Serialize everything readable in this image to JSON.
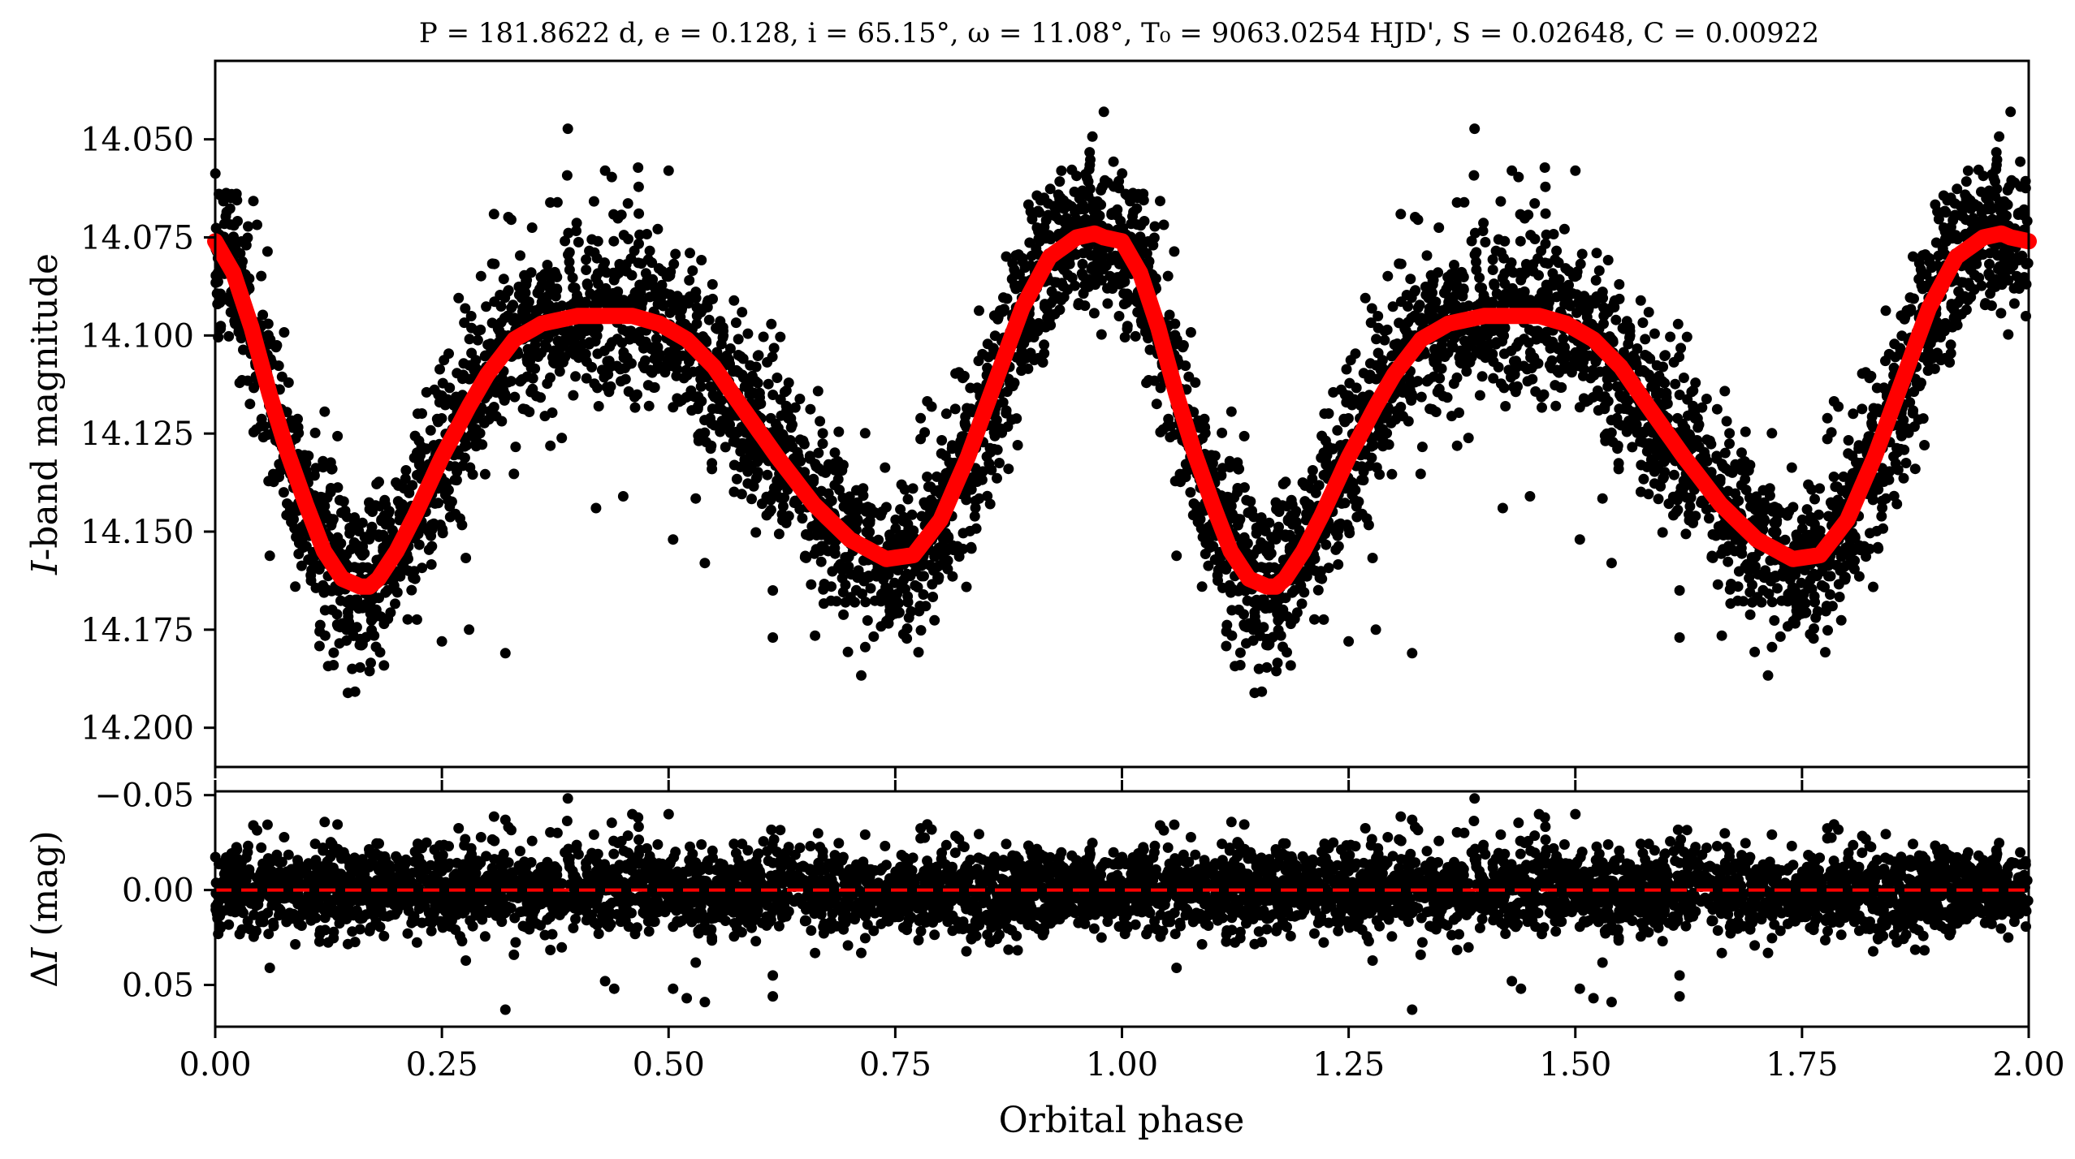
{
  "figure": {
    "title": "P = 181.8622 d, e = 0.128, i = 65.15°, ω = 11.08°, T₀ = 9063.0254 HJD', S = 0.02648, C = 0.00922"
  },
  "colors": {
    "data_points": "#000000",
    "model_curve": "#ff0000",
    "zero_line": "#ff0000",
    "axes": "#000000",
    "background": "#ffffff"
  },
  "chart_data": [
    {
      "type": "scatter",
      "panel": "light-curve",
      "xlabel": "",
      "ylabel_italic": "I",
      "ylabel_rest": "-band magnitude",
      "xlim": [
        0.0,
        2.0
      ],
      "ylim": [
        14.21,
        14.03
      ],
      "y_inverted": true,
      "y_ticks": [
        "14.050",
        "14.075",
        "14.100",
        "14.125",
        "14.150",
        "14.175",
        "14.200"
      ],
      "x_ticks": [
        0.0,
        0.25,
        0.5,
        0.75,
        1.0,
        1.25,
        1.5,
        1.75,
        2.0
      ],
      "grid": false,
      "series": [
        {
          "kind": "points",
          "note_phase_fold": "same data repeated for phase + 1",
          "x": [
            0.0,
            0.02,
            0.04,
            0.06,
            0.08,
            0.1,
            0.12,
            0.14,
            0.16,
            0.17,
            0.18,
            0.2,
            0.22,
            0.25,
            0.28,
            0.3,
            0.33,
            0.36,
            0.4,
            0.43,
            0.46,
            0.49,
            0.52,
            0.55,
            0.58,
            0.62,
            0.66,
            0.7,
            0.74,
            0.77,
            0.8,
            0.83,
            0.86,
            0.89,
            0.92,
            0.95,
            0.97,
            0.98
          ],
          "y": [
            14.076,
            14.084,
            14.098,
            14.115,
            14.13,
            14.143,
            14.155,
            14.162,
            14.164,
            14.164,
            14.162,
            14.155,
            14.146,
            14.131,
            14.118,
            14.11,
            14.101,
            14.097,
            14.095,
            14.095,
            14.095,
            14.097,
            14.101,
            14.108,
            14.118,
            14.131,
            14.143,
            14.152,
            14.157,
            14.156,
            14.147,
            14.131,
            14.112,
            14.093,
            14.08,
            14.075,
            14.074,
            14.075
          ]
        },
        {
          "kind": "model",
          "x": [
            0.0,
            0.02,
            0.04,
            0.06,
            0.08,
            0.1,
            0.12,
            0.14,
            0.16,
            0.17,
            0.18,
            0.2,
            0.22,
            0.25,
            0.28,
            0.3,
            0.33,
            0.36,
            0.4,
            0.43,
            0.46,
            0.49,
            0.52,
            0.55,
            0.58,
            0.62,
            0.66,
            0.7,
            0.74,
            0.77,
            0.8,
            0.83,
            0.86,
            0.89,
            0.92,
            0.95,
            0.97,
            0.98,
            1.0
          ],
          "y": [
            14.076,
            14.084,
            14.098,
            14.115,
            14.13,
            14.143,
            14.155,
            14.162,
            14.164,
            14.164,
            14.162,
            14.155,
            14.146,
            14.131,
            14.118,
            14.11,
            14.101,
            14.097,
            14.095,
            14.095,
            14.095,
            14.097,
            14.101,
            14.108,
            14.118,
            14.131,
            14.143,
            14.152,
            14.157,
            14.156,
            14.147,
            14.131,
            14.112,
            14.093,
            14.08,
            14.075,
            14.074,
            14.075,
            14.076
          ]
        }
      ],
      "outliers": [
        {
          "x": 0.32,
          "y": 14.181
        },
        {
          "x": 0.25,
          "y": 14.178
        },
        {
          "x": 0.5,
          "y": 14.058
        },
        {
          "x": 0.43,
          "y": 14.058
        },
        {
          "x": 0.505,
          "y": 14.152
        },
        {
          "x": 0.54,
          "y": 14.158
        },
        {
          "x": 0.615,
          "y": 14.165
        },
        {
          "x": 0.615,
          "y": 14.177
        },
        {
          "x": 0.45,
          "y": 14.141
        },
        {
          "x": 0.28,
          "y": 14.175
        },
        {
          "x": 0.98,
          "y": 14.043
        },
        {
          "x": 0.42,
          "y": 14.144
        }
      ]
    },
    {
      "type": "scatter",
      "panel": "residuals",
      "xlabel": "Orbital phase",
      "ylabel_delta": "Δ",
      "ylabel_italic": "I",
      "ylabel_rest": " (mag)",
      "xlim": [
        0.0,
        2.0
      ],
      "ylim": [
        0.072,
        -0.052
      ],
      "y_inverted": true,
      "y_ticks": [
        "−0.05",
        "0.00",
        "0.05"
      ],
      "x_ticks": [
        "0.00",
        "0.25",
        "0.50",
        "0.75",
        "1.00",
        "1.25",
        "1.50",
        "1.75",
        "2.00"
      ],
      "grid": false,
      "reference_line": {
        "y": 0.0,
        "style": "dashed"
      },
      "residual_scatter_sigma": 0.011,
      "outliers": [
        {
          "x": 0.32,
          "y": 0.063
        },
        {
          "x": 0.32,
          "y": -0.037
        },
        {
          "x": 0.5,
          "y": -0.04
        },
        {
          "x": 0.505,
          "y": 0.052
        },
        {
          "x": 0.52,
          "y": 0.057
        },
        {
          "x": 0.54,
          "y": 0.059
        },
        {
          "x": 0.615,
          "y": 0.045
        },
        {
          "x": 0.615,
          "y": 0.056
        },
        {
          "x": 0.43,
          "y": 0.048
        },
        {
          "x": 0.44,
          "y": 0.052
        },
        {
          "x": 0.46,
          "y": -0.04
        }
      ]
    }
  ]
}
